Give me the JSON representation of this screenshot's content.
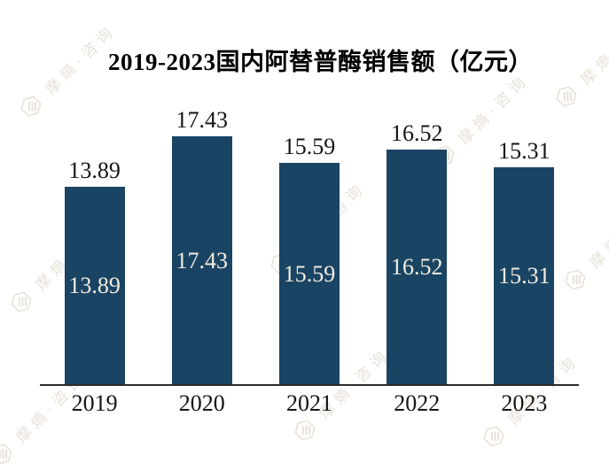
{
  "chart_data": {
    "type": "bar",
    "title": "2019-2023国内阿替普酶销售额（亿元）",
    "unit": "亿元",
    "categories": [
      "2019",
      "2020",
      "2021",
      "2022",
      "2023"
    ],
    "values": [
      13.89,
      17.43,
      15.59,
      16.52,
      15.31
    ],
    "value_labels": [
      "13.89",
      "17.43",
      "15.59",
      "16.52",
      "15.31"
    ],
    "label_positions": [
      "above-bar",
      "inside-bar-center"
    ],
    "bar_color": "#1a4464",
    "inside_label_color": "#f2ecdf",
    "outside_label_color": "#151515",
    "axis_color": "#2b2b2b",
    "ylim": [
      0,
      18.9
    ],
    "grid": false,
    "legend": "none"
  },
  "watermark": {
    "text": "摩熵·咨询",
    "icon": "hexagon-logo",
    "color": "#e7e2d8"
  }
}
